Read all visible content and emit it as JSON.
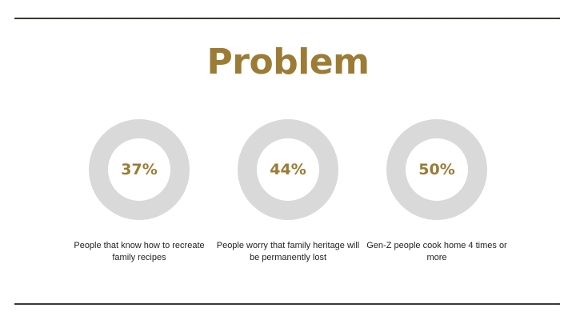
{
  "slide": {
    "title": "Problem",
    "accent_color": "#9c7b35",
    "ring_color": "#d9d9d9",
    "rule_color": "#3a3a32"
  },
  "stats": [
    {
      "value": "37%",
      "caption": "People that know how to recreate family recipes"
    },
    {
      "value": "44%",
      "caption": "People worry that family heritage will be permanently lost"
    },
    {
      "value": "50%",
      "caption": "Gen-Z people cook home 4 times or more"
    }
  ]
}
